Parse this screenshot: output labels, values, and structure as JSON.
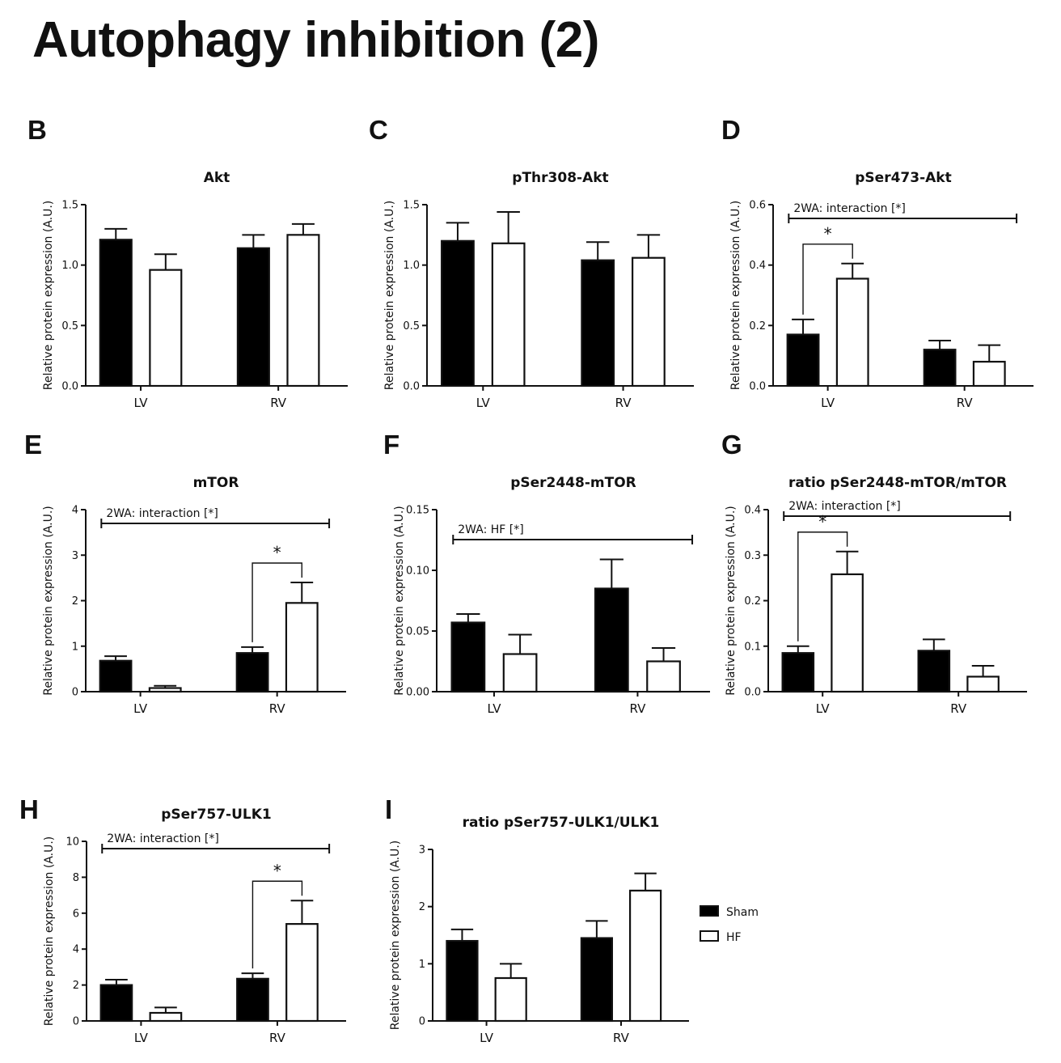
{
  "page_title": "Autophagy inhibition (2)",
  "legend": [
    {
      "label": "Sham",
      "color": "#000000"
    },
    {
      "label": "HF",
      "color": "#ffffff"
    }
  ],
  "chart_data": [
    {
      "panel": "B",
      "type": "bar",
      "title": "Akt",
      "ylabel": "Relative protein expression (A.U.)",
      "categories": [
        "LV",
        "RV"
      ],
      "ylim": [
        0,
        1.5
      ],
      "yticks": [
        "0.0",
        "0.5",
        "1.0",
        "1.5"
      ],
      "series": [
        {
          "name": "Sham",
          "values": [
            1.21,
            1.14
          ],
          "errors": [
            0.09,
            0.11
          ]
        },
        {
          "name": "HF",
          "values": [
            0.96,
            1.25
          ],
          "errors": [
            0.13,
            0.09
          ]
        }
      ]
    },
    {
      "panel": "C",
      "type": "bar",
      "title": "pThr308-Akt",
      "ylabel": "Relative protein expression (A.U.)",
      "categories": [
        "LV",
        "RV"
      ],
      "ylim": [
        0,
        1.5
      ],
      "yticks": [
        "0.0",
        "0.5",
        "1.0",
        "1.5"
      ],
      "series": [
        {
          "name": "Sham",
          "values": [
            1.2,
            1.04
          ],
          "errors": [
            0.15,
            0.15
          ]
        },
        {
          "name": "HF",
          "values": [
            1.18,
            1.06
          ],
          "errors": [
            0.26,
            0.19
          ]
        }
      ]
    },
    {
      "panel": "D",
      "type": "bar",
      "title": "pSer473-Akt",
      "ylabel": "Relative protein expression (A.U.)",
      "categories": [
        "LV",
        "RV"
      ],
      "ylim": [
        0,
        0.6
      ],
      "yticks": [
        "0.0",
        "0.2",
        "0.4",
        "0.6"
      ],
      "series": [
        {
          "name": "Sham",
          "values": [
            0.17,
            0.12
          ],
          "errors": [
            0.05,
            0.03
          ]
        },
        {
          "name": "HF",
          "values": [
            0.355,
            0.08
          ],
          "errors": [
            0.05,
            0.055
          ]
        }
      ],
      "annotation": "2WA: interaction [*]",
      "significance": {
        "label": "*",
        "category": "LV"
      }
    },
    {
      "panel": "E",
      "type": "bar",
      "title": "mTOR",
      "ylabel": "Relative protein expression (A.U.)",
      "categories": [
        "LV",
        "RV"
      ],
      "ylim": [
        0,
        4
      ],
      "yticks": [
        "0",
        "1",
        "2",
        "3",
        "4"
      ],
      "series": [
        {
          "name": "Sham",
          "values": [
            0.68,
            0.85
          ],
          "errors": [
            0.1,
            0.13
          ]
        },
        {
          "name": "HF",
          "values": [
            0.08,
            1.95
          ],
          "errors": [
            0.05,
            0.45
          ]
        }
      ],
      "annotation": "2WA: interaction [*]",
      "significance": {
        "label": "*",
        "category": "RV"
      }
    },
    {
      "panel": "F",
      "type": "bar",
      "title": "pSer2448-mTOR",
      "ylabel": "Relative protein expression (A.U.)",
      "categories": [
        "LV",
        "RV"
      ],
      "ylim": [
        0,
        0.15
      ],
      "yticks": [
        "0.00",
        "0.05",
        "0.10",
        "0.15"
      ],
      "series": [
        {
          "name": "Sham",
          "values": [
            0.057,
            0.085
          ],
          "errors": [
            0.007,
            0.024
          ]
        },
        {
          "name": "HF",
          "values": [
            0.031,
            0.025
          ],
          "errors": [
            0.016,
            0.011
          ]
        }
      ],
      "annotation": "2WA: HF [*]"
    },
    {
      "panel": "G",
      "type": "bar",
      "title": "ratio pSer2448-mTOR/mTOR",
      "ylabel": "Relative protein expression (A.U.)",
      "categories": [
        "LV",
        "RV"
      ],
      "ylim": [
        0,
        0.4
      ],
      "yticks": [
        "0.0",
        "0.1",
        "0.2",
        "0.3",
        "0.4"
      ],
      "series": [
        {
          "name": "Sham",
          "values": [
            0.085,
            0.09
          ],
          "errors": [
            0.015,
            0.025
          ]
        },
        {
          "name": "HF",
          "values": [
            0.258,
            0.033
          ],
          "errors": [
            0.05,
            0.024
          ]
        }
      ],
      "annotation": "2WA: interaction [*]",
      "significance": {
        "label": "*",
        "category": "LV"
      }
    },
    {
      "panel": "H",
      "type": "bar",
      "title": "pSer757-ULK1",
      "ylabel": "Relative protein expression (A.U.)",
      "categories": [
        "LV",
        "RV"
      ],
      "ylim": [
        0,
        10
      ],
      "yticks": [
        "0",
        "2",
        "4",
        "6",
        "8",
        "10"
      ],
      "series": [
        {
          "name": "Sham",
          "values": [
            2.0,
            2.35
          ],
          "errors": [
            0.3,
            0.3
          ]
        },
        {
          "name": "HF",
          "values": [
            0.45,
            5.4
          ],
          "errors": [
            0.3,
            1.3
          ]
        }
      ],
      "annotation": "2WA: interaction [*]",
      "significance": {
        "label": "*",
        "category": "RV"
      }
    },
    {
      "panel": "I",
      "type": "bar",
      "title": "ratio pSer757-ULK1/ULK1",
      "ylabel": "Relative protein expression (A.U.)",
      "categories": [
        "LV",
        "RV"
      ],
      "ylim": [
        0,
        3
      ],
      "yticks": [
        "0",
        "1",
        "2",
        "3"
      ],
      "series": [
        {
          "name": "Sham",
          "values": [
            1.4,
            1.45
          ],
          "errors": [
            0.2,
            0.3
          ]
        },
        {
          "name": "HF",
          "values": [
            0.75,
            2.28
          ],
          "errors": [
            0.25,
            0.3
          ]
        }
      ]
    }
  ]
}
